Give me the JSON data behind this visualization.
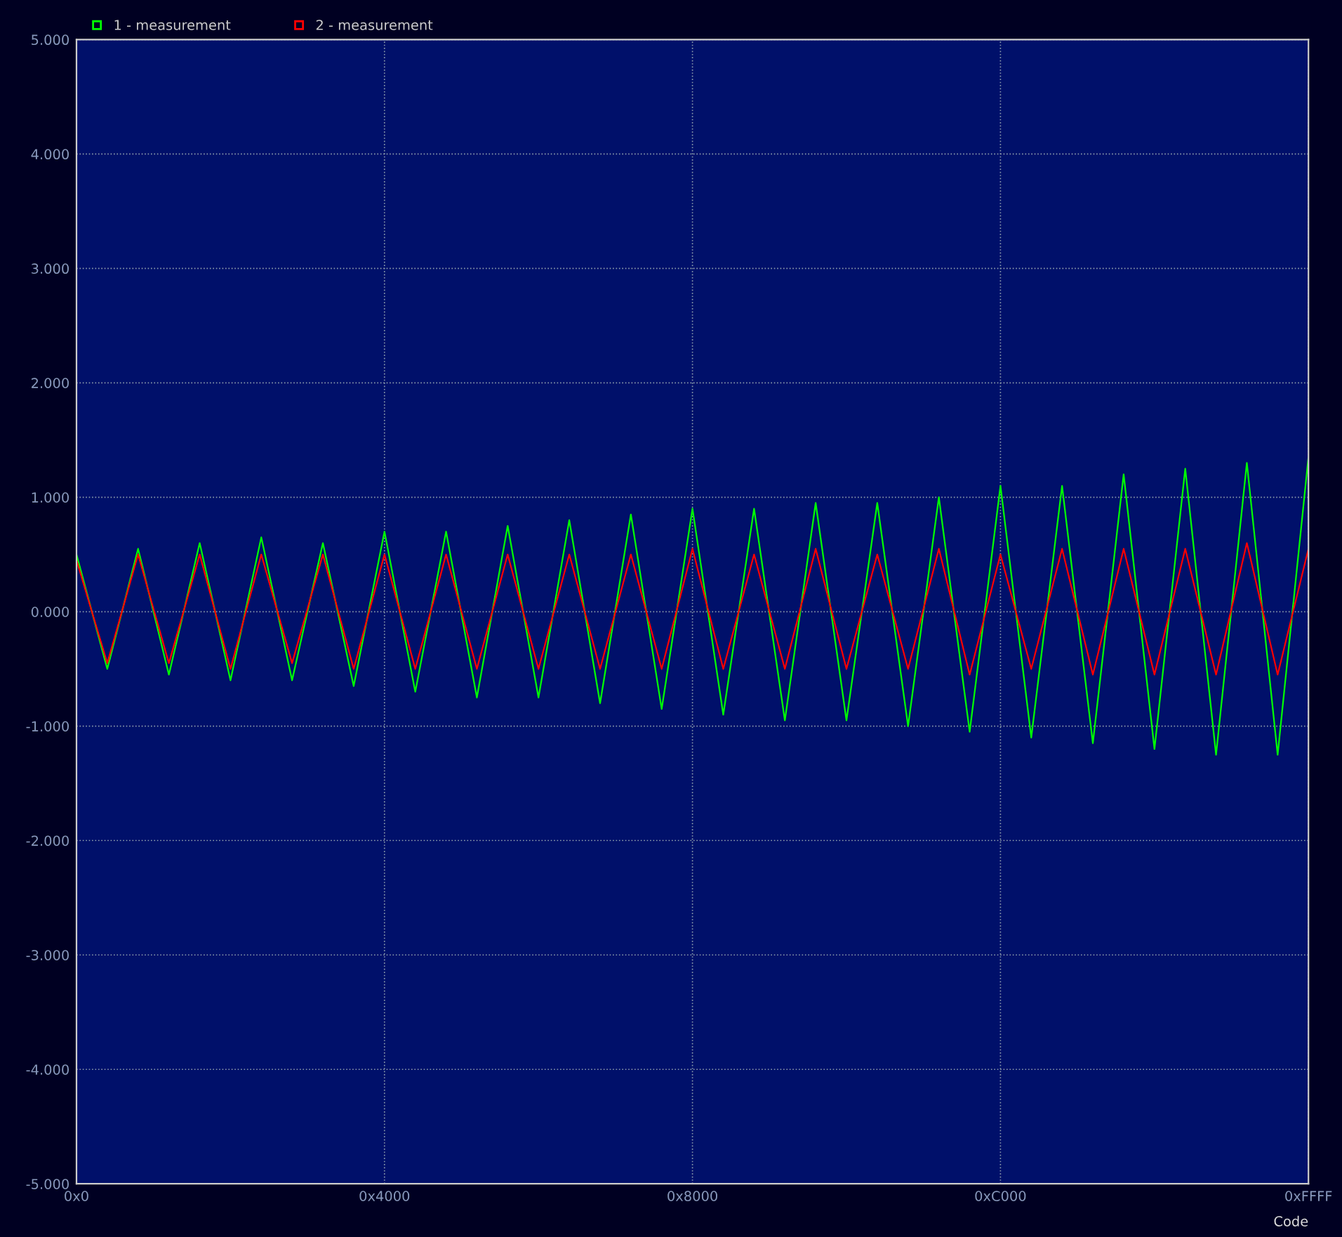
{
  "chart_data": {
    "type": "line",
    "xlabel": "Code",
    "categories": [
      "0x0",
      null,
      null,
      null,
      null,
      null,
      null,
      null,
      null,
      null,
      "0x4000",
      null,
      null,
      null,
      null,
      null,
      null,
      null,
      null,
      null,
      "0x8000",
      null,
      null,
      null,
      null,
      null,
      null,
      null,
      null,
      null,
      "0xC000",
      null,
      null,
      null,
      null,
      null,
      null,
      null,
      null,
      null,
      "0xFFFF"
    ],
    "series": [
      {
        "name": "1 - measurement",
        "color": "#00ff00",
        "values": [
          0.5,
          -0.5,
          0.55,
          -0.55,
          0.6,
          -0.6,
          0.65,
          -0.6,
          0.6,
          -0.65,
          0.7,
          -0.7,
          0.7,
          -0.75,
          0.75,
          -0.75,
          0.8,
          -0.8,
          0.85,
          -0.85,
          0.9,
          -0.9,
          0.9,
          -0.95,
          0.95,
          -0.95,
          0.95,
          -1.0,
          1.0,
          -1.05,
          1.1,
          -1.1,
          1.1,
          -1.15,
          1.2,
          -1.2,
          1.25,
          -1.25,
          1.3,
          -1.25,
          1.35
        ]
      },
      {
        "name": "2 - measurement",
        "color": "#ff0000",
        "values": [
          0.45,
          -0.45,
          0.5,
          -0.45,
          0.5,
          -0.5,
          0.5,
          -0.45,
          0.5,
          -0.5,
          0.5,
          -0.5,
          0.5,
          -0.5,
          0.5,
          -0.5,
          0.5,
          -0.5,
          0.5,
          -0.5,
          0.55,
          -0.5,
          0.5,
          -0.5,
          0.55,
          -0.5,
          0.5,
          -0.5,
          0.55,
          -0.55,
          0.5,
          -0.5,
          0.55,
          -0.55,
          0.55,
          -0.55,
          0.55,
          -0.55,
          0.6,
          -0.55,
          0.55
        ]
      }
    ],
    "ylim": [
      -5,
      5
    ],
    "yticks": [
      {
        "value": -5,
        "label": "-5.000"
      },
      {
        "value": -4,
        "label": "-4.000"
      },
      {
        "value": -3,
        "label": "-3.000"
      },
      {
        "value": -2,
        "label": "-2.000"
      },
      {
        "value": -1,
        "label": "-1.000"
      },
      {
        "value": 0,
        "label": "0.000"
      },
      {
        "value": 1,
        "label": "1.000"
      },
      {
        "value": 2,
        "label": "2.000"
      },
      {
        "value": 3,
        "label": "3.000"
      },
      {
        "value": 4,
        "label": "4.000"
      },
      {
        "value": 5,
        "label": "5.000"
      }
    ],
    "grid": true,
    "legend": "top left",
    "line_style": "solid"
  }
}
